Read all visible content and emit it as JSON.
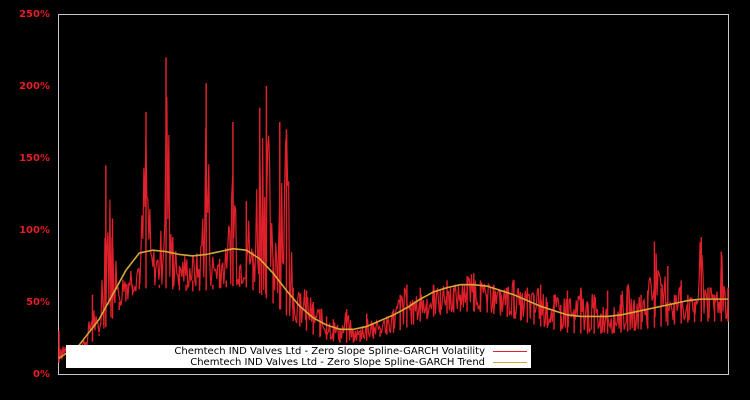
{
  "chart_data": {
    "type": "line",
    "title": "",
    "xlabel": "",
    "ylabel": "",
    "ylim": [
      0,
      250
    ],
    "y_ticks": [
      "0%",
      "50%",
      "100%",
      "150%",
      "200%",
      "250%"
    ],
    "x_ticks": [],
    "grid": false,
    "legend_position": "bottom-left inside plot",
    "background": "#000000",
    "series": [
      {
        "name": "Chemtech IND Valves Ltd - Zero Slope Spline-GARCH Volatility",
        "color": "#e0202a",
        "style": "noisy volatility series with spikes",
        "x_frac": [
          0.0,
          0.02,
          0.04,
          0.05,
          0.06,
          0.07,
          0.08,
          0.09,
          0.1,
          0.11,
          0.12,
          0.13,
          0.14,
          0.15,
          0.16,
          0.17,
          0.18,
          0.19,
          0.2,
          0.21,
          0.22,
          0.23,
          0.24,
          0.25,
          0.26,
          0.27,
          0.28,
          0.29,
          0.3,
          0.31,
          0.32,
          0.33,
          0.34,
          0.35,
          0.36,
          0.37,
          0.38,
          0.39,
          0.4,
          0.41,
          0.42,
          0.43,
          0.44,
          0.45,
          0.46,
          0.47,
          0.48,
          0.49,
          0.5,
          0.51,
          0.52,
          0.53,
          0.54,
          0.55,
          0.56,
          0.57,
          0.58,
          0.59,
          0.6,
          0.61,
          0.62,
          0.63,
          0.64,
          0.65,
          0.66,
          0.67,
          0.68,
          0.69,
          0.7,
          0.71,
          0.72,
          0.73,
          0.74,
          0.75,
          0.76,
          0.77,
          0.78,
          0.79,
          0.8,
          0.81,
          0.82,
          0.83,
          0.84,
          0.85,
          0.86,
          0.87,
          0.88,
          0.89,
          0.9,
          0.91,
          0.92,
          0.93,
          0.94,
          0.95,
          0.96,
          0.97,
          0.98,
          0.99,
          1.0
        ],
        "values": [
          30,
          12,
          18,
          55,
          28,
          145,
          108,
          50,
          60,
          62,
          65,
          182,
          60,
          62,
          220,
          95,
          75,
          62,
          65,
          65,
          202,
          62,
          80,
          65,
          175,
          70,
          120,
          85,
          185,
          200,
          80,
          175,
          170,
          60,
          55,
          58,
          50,
          45,
          40,
          38,
          32,
          45,
          30,
          28,
          42,
          35,
          30,
          40,
          45,
          55,
          62,
          48,
          60,
          52,
          62,
          58,
          65,
          60,
          55,
          68,
          70,
          65,
          55,
          62,
          58,
          60,
          65,
          55,
          60,
          55,
          62,
          50,
          55,
          48,
          58,
          45,
          60,
          50,
          55,
          42,
          58,
          45,
          55,
          60,
          50,
          55,
          58,
          92,
          60,
          75,
          55,
          65,
          55,
          50,
          95,
          60,
          55,
          85,
          60,
          65,
          58
        ]
      },
      {
        "name": "Chemtech IND Valves Ltd - Zero Slope Spline-GARCH Trend",
        "color": "#d4a838",
        "style": "smooth spline",
        "x_frac": [
          0.0,
          0.03,
          0.06,
          0.08,
          0.1,
          0.12,
          0.14,
          0.16,
          0.18,
          0.2,
          0.22,
          0.24,
          0.26,
          0.28,
          0.3,
          0.32,
          0.34,
          0.36,
          0.38,
          0.4,
          0.42,
          0.44,
          0.46,
          0.48,
          0.5,
          0.52,
          0.54,
          0.56,
          0.58,
          0.6,
          0.62,
          0.64,
          0.66,
          0.68,
          0.7,
          0.72,
          0.74,
          0.76,
          0.78,
          0.8,
          0.82,
          0.84,
          0.86,
          0.88,
          0.9,
          0.92,
          0.94,
          0.96,
          0.98,
          1.0
        ],
        "values": [
          11,
          20,
          38,
          55,
          72,
          84,
          86,
          85,
          83,
          82,
          83,
          85,
          87,
          86,
          80,
          70,
          58,
          47,
          39,
          34,
          31,
          31,
          33,
          37,
          41,
          46,
          52,
          57,
          60,
          62,
          62,
          61,
          58,
          55,
          51,
          47,
          44,
          41,
          40,
          40,
          40,
          41,
          43,
          45,
          47,
          49,
          51,
          52,
          52,
          52
        ]
      }
    ]
  },
  "axis": {
    "y_labels": [
      "250%",
      "200%",
      "150%",
      "100%",
      "50%",
      "0%"
    ]
  },
  "legend": {
    "items": [
      {
        "label": "Chemtech IND Valves Ltd - Zero Slope Spline-GARCH Volatility",
        "color": "#e0202a"
      },
      {
        "label": "Chemtech IND Valves Ltd - Zero Slope Spline-GARCH Trend",
        "color": "#d4a838"
      }
    ]
  },
  "colors": {
    "frame": "#c8c8c8",
    "tick_label": "#e0202a",
    "background": "#000000"
  }
}
